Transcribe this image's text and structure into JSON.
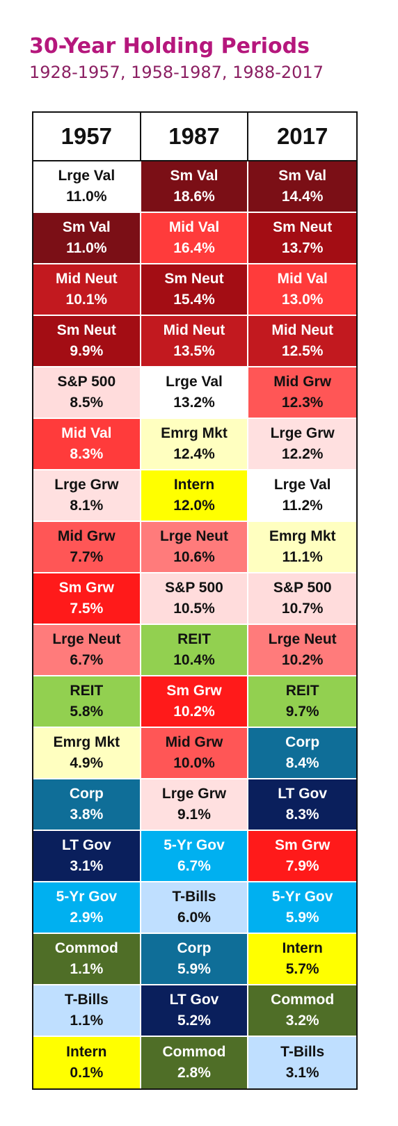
{
  "title": "30-Year Holding Periods",
  "subtitle": "1928-1957, 1958-1987, 1988-2017",
  "colors": {
    "Sm Val": "#7b0f16",
    "Sm Neut": "#a30d14",
    "Mid Neut": "#c2191f",
    "Mid Val": "#ff3b3b",
    "Sm Grw": "#ff1a1a",
    "Mid Grw": "#ff5656",
    "Lrge Neut": "#ff7b7b",
    "Lrge Grw": "#ffe0e0",
    "S&P 500": "#ffdcdc",
    "Lrge Val": "#ffffff",
    "Emrg Mkt": "#ffffc0",
    "Intern": "#ffff00",
    "REIT": "#92d050",
    "Corp": "#0f6e98",
    "LT Gov": "#0a1f5c",
    "5-Yr Gov": "#00b0f0",
    "T-Bills": "#bfdfff",
    "Commod": "#4f6e27"
  },
  "chart_data": {
    "type": "table",
    "title": "30-Year Holding Periods",
    "subtitle": "1928-1957, 1958-1987, 1988-2017",
    "columns": [
      {
        "header": "1957",
        "rows": [
          {
            "name": "Lrge Val",
            "value": "11.0%"
          },
          {
            "name": "Sm Val",
            "value": "11.0%"
          },
          {
            "name": "Mid Neut",
            "value": "10.1%"
          },
          {
            "name": "Sm Neut",
            "value": "9.9%"
          },
          {
            "name": "S&P 500",
            "value": "8.5%"
          },
          {
            "name": "Mid Val",
            "value": "8.3%"
          },
          {
            "name": "Lrge Grw",
            "value": "8.1%"
          },
          {
            "name": "Mid Grw",
            "value": "7.7%"
          },
          {
            "name": "Sm Grw",
            "value": "7.5%"
          },
          {
            "name": "Lrge Neut",
            "value": "6.7%"
          },
          {
            "name": "REIT",
            "value": "5.8%"
          },
          {
            "name": "Emrg Mkt",
            "value": "4.9%"
          },
          {
            "name": "Corp",
            "value": "3.8%"
          },
          {
            "name": "LT Gov",
            "value": "3.1%"
          },
          {
            "name": "5-Yr Gov",
            "value": "2.9%"
          },
          {
            "name": "Commod",
            "value": "1.1%"
          },
          {
            "name": "T-Bills",
            "value": "1.1%"
          },
          {
            "name": "Intern",
            "value": "0.1%"
          }
        ]
      },
      {
        "header": "1987",
        "rows": [
          {
            "name": "Sm Val",
            "value": "18.6%"
          },
          {
            "name": "Mid Val",
            "value": "16.4%"
          },
          {
            "name": "Sm Neut",
            "value": "15.4%"
          },
          {
            "name": "Mid Neut",
            "value": "13.5%"
          },
          {
            "name": "Lrge Val",
            "value": "13.2%"
          },
          {
            "name": "Emrg Mkt",
            "value": "12.4%"
          },
          {
            "name": "Intern",
            "value": "12.0%"
          },
          {
            "name": "Lrge Neut",
            "value": "10.6%"
          },
          {
            "name": "S&P 500",
            "value": "10.5%"
          },
          {
            "name": "REIT",
            "value": "10.4%"
          },
          {
            "name": "Sm Grw",
            "value": "10.2%"
          },
          {
            "name": "Mid Grw",
            "value": "10.0%"
          },
          {
            "name": "Lrge Grw",
            "value": "9.1%"
          },
          {
            "name": "5-Yr Gov",
            "value": "6.7%"
          },
          {
            "name": "T-Bills",
            "value": "6.0%"
          },
          {
            "name": "Corp",
            "value": "5.9%"
          },
          {
            "name": "LT Gov",
            "value": "5.2%"
          },
          {
            "name": "Commod",
            "value": "2.8%"
          }
        ]
      },
      {
        "header": "2017",
        "rows": [
          {
            "name": "Sm Val",
            "value": "14.4%"
          },
          {
            "name": "Sm Neut",
            "value": "13.7%"
          },
          {
            "name": "Mid Val",
            "value": "13.0%"
          },
          {
            "name": "Mid Neut",
            "value": "12.5%"
          },
          {
            "name": "Mid Grw",
            "value": "12.3%"
          },
          {
            "name": "Lrge Grw",
            "value": "12.2%"
          },
          {
            "name": "Lrge Val",
            "value": "11.2%"
          },
          {
            "name": "Emrg Mkt",
            "value": "11.1%"
          },
          {
            "name": "S&P 500",
            "value": "10.7%"
          },
          {
            "name": "Lrge Neut",
            "value": "10.2%"
          },
          {
            "name": "REIT",
            "value": "9.7%"
          },
          {
            "name": "Corp",
            "value": "8.4%"
          },
          {
            "name": "LT Gov",
            "value": "8.3%"
          },
          {
            "name": "Sm Grw",
            "value": "7.9%"
          },
          {
            "name": "5-Yr Gov",
            "value": "5.9%"
          },
          {
            "name": "Intern",
            "value": "5.7%"
          },
          {
            "name": "Commod",
            "value": "3.2%"
          },
          {
            "name": "T-Bills",
            "value": "3.1%"
          }
        ]
      }
    ]
  }
}
